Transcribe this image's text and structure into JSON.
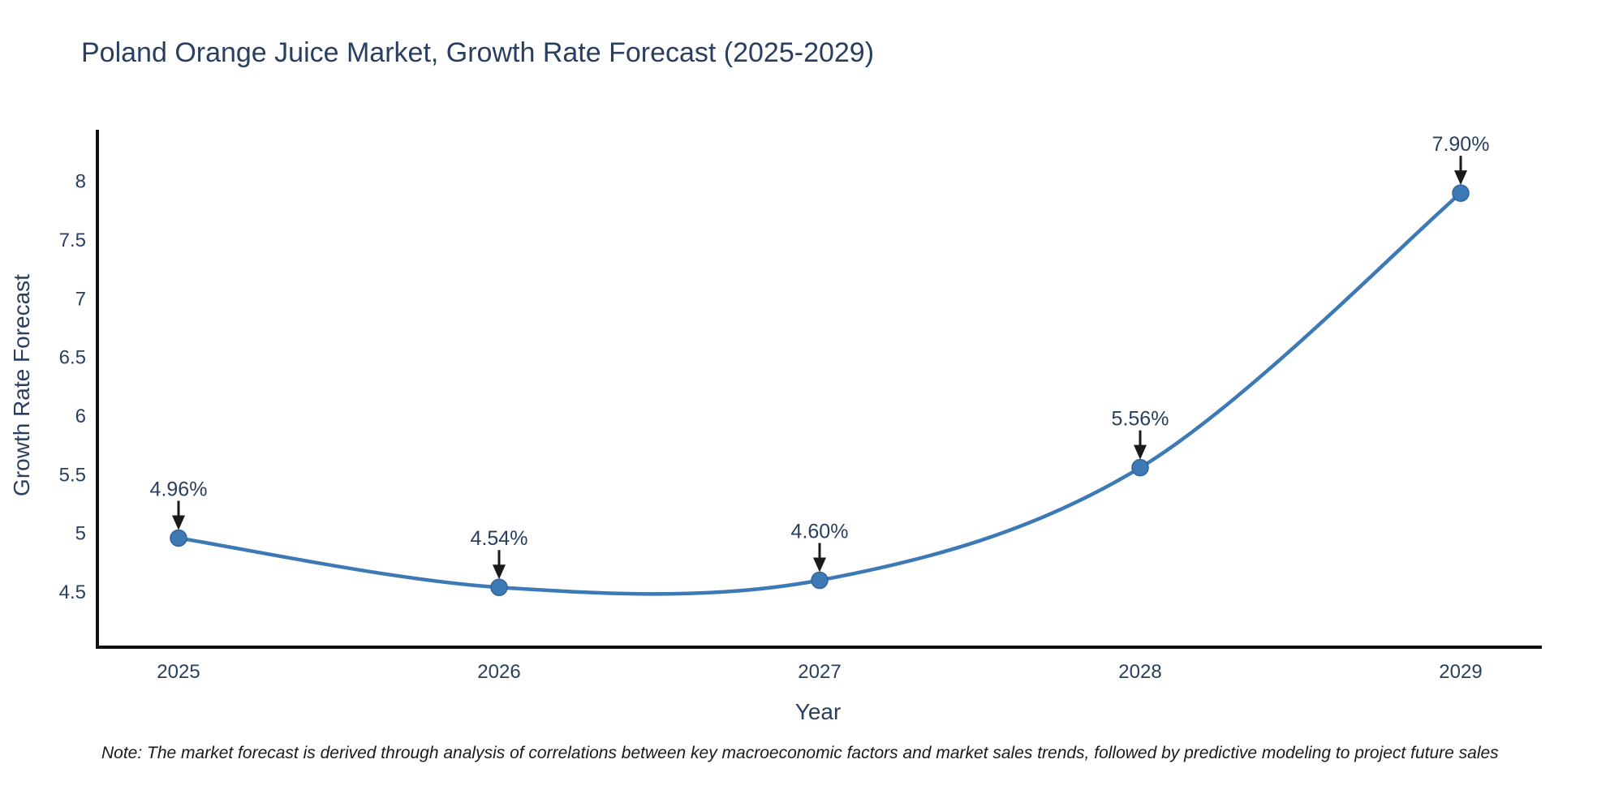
{
  "title": "Poland Orange Juice Market, Growth Rate Forecast (2025-2029)",
  "note": "Note: The market forecast is derived through analysis of correlations between key macroeconomic factors and market sales trends, followed by predictive modeling to project future sales",
  "chart_data": {
    "type": "line",
    "line_shape": "spline",
    "title": "Poland Orange Juice Market, Growth Rate Forecast (2025-2029)",
    "xlabel": "Year",
    "ylabel": "Growth Rate Forecast",
    "categories": [
      "2025",
      "2026",
      "2027",
      "2028",
      "2029"
    ],
    "series": [
      {
        "name": "Growth Rate Forecast",
        "values": [
          4.96,
          4.54,
          4.6,
          5.56,
          7.9
        ]
      }
    ],
    "point_labels": [
      "4.96%",
      "4.54%",
      "4.60%",
      "5.56%",
      "7.90%"
    ],
    "ylim": [
      4.03,
      8.44
    ],
    "yticks": [
      4.5,
      5,
      5.5,
      6,
      6.5,
      7,
      7.5,
      8
    ],
    "grid": false,
    "legend": "none",
    "markers": true,
    "colors": {
      "line": "#3d79b4",
      "marker_fill": "#3d79b4",
      "marker_edge": "#2f649e",
      "axis_line": "#111111",
      "tick_text": "#2a3f5f",
      "annotation_text": "#2a3f5f",
      "arrow": "#1a1a1a",
      "title_text": "#2a3f5f",
      "note_text": "#1a1a1a",
      "background": "#ffffff"
    }
  }
}
